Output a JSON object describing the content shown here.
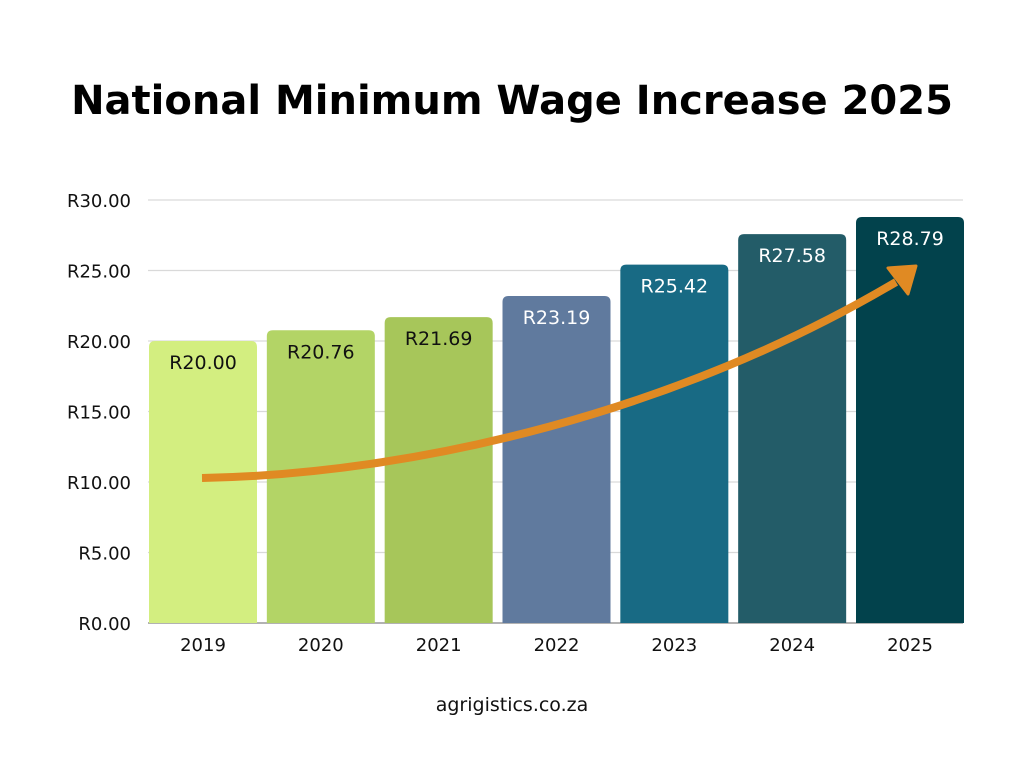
{
  "chart_data": {
    "type": "bar",
    "title": "National Minimum Wage Increase 2025",
    "categories": [
      "2019",
      "2020",
      "2021",
      "2022",
      "2023",
      "2024",
      "2025"
    ],
    "values": [
      20.0,
      20.76,
      21.69,
      23.19,
      25.42,
      27.58,
      28.79
    ],
    "data_labels": [
      "R20.00",
      "R20.76",
      "R21.69",
      "R23.19",
      "R25.42",
      "R27.58",
      "R28.79"
    ],
    "bar_colors": [
      "#d3ee80",
      "#b3d466",
      "#a7c65a",
      "#607a9e",
      "#186a84",
      "#235c68",
      "#02424c"
    ],
    "label_colors": [
      "#111111",
      "#111111",
      "#111111",
      "#ffffff",
      "#ffffff",
      "#ffffff",
      "#ffffff"
    ],
    "ylim": [
      0,
      30
    ],
    "yticks": [
      0,
      5,
      10,
      15,
      20,
      25,
      30
    ],
    "ytick_labels": [
      "R0.00",
      "R5.00",
      "R10.00",
      "R15.00",
      "R20.00",
      "R25.00",
      "R30.00"
    ],
    "grid": true,
    "xlabel": "",
    "ylabel": "",
    "trend_arrow_color": "#e08a23"
  },
  "footer": "agrigistics.co.za"
}
